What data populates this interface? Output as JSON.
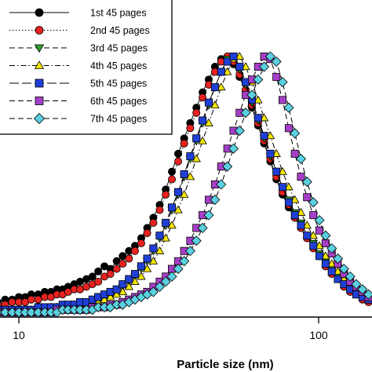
{
  "chart_data": {
    "type": "scatter",
    "title": "",
    "xlabel": "Particle size (nm)",
    "ylabel": "",
    "xscale": "log",
    "xlim": [
      8.3,
      150
    ],
    "ylim": [
      0,
      1.04
    ],
    "xticks": [
      10,
      100
    ],
    "xtick_labels": [
      "10",
      "100"
    ],
    "grid": false,
    "legend_position": "top-left",
    "series": [
      {
        "name": "1st 45 pages",
        "color": "#000000",
        "marker": "circle",
        "line": "solid",
        "x": [
          8.5,
          9.0,
          9.5,
          10.0,
          10.5,
          11.0,
          11.6,
          12.2,
          12.8,
          13.4,
          14.0,
          14.6,
          15.3,
          16.0,
          16.8,
          17.6,
          18.4,
          19.3,
          20.2,
          21.2,
          22.2,
          23.3,
          24.4,
          25.6,
          26.8,
          28.1,
          29.5,
          30.9,
          32.4,
          34.0,
          35.6,
          37.3,
          39.1,
          41.0,
          43.0,
          45.1,
          47.3,
          49.6,
          52.0,
          54.5,
          57.1,
          59.9,
          62.8,
          65.8,
          69.0,
          72.3,
          75.8,
          79.5,
          83.3,
          87.3,
          91.5,
          96.0,
          100.6,
          105.5,
          110.6,
          115.9,
          121.5,
          127.4,
          133.5,
          140.0,
          146.7
        ],
        "y": [
          0.04,
          0.05,
          0.05,
          0.06,
          0.06,
          0.07,
          0.07,
          0.08,
          0.08,
          0.09,
          0.09,
          0.1,
          0.11,
          0.12,
          0.13,
          0.14,
          0.16,
          0.18,
          0.17,
          0.2,
          0.22,
          0.24,
          0.26,
          0.29,
          0.33,
          0.37,
          0.42,
          0.48,
          0.55,
          0.62,
          0.68,
          0.74,
          0.8,
          0.86,
          0.91,
          0.96,
          0.99,
          1.0,
          0.97,
          0.92,
          0.86,
          0.8,
          0.73,
          0.66,
          0.59,
          0.52,
          0.46,
          0.41,
          0.37,
          0.33,
          0.29,
          0.26,
          0.22,
          0.19,
          0.16,
          0.13,
          0.11,
          0.09,
          0.07,
          0.06,
          0.05
        ]
      },
      {
        "name": "2nd 45 pages",
        "color": "#e8221f",
        "marker": "circle",
        "line": "dotted",
        "x": [
          8.5,
          9.0,
          9.5,
          10.0,
          10.5,
          11.0,
          11.6,
          12.2,
          12.8,
          13.4,
          14.0,
          14.6,
          15.3,
          16.0,
          16.8,
          17.6,
          18.4,
          19.3,
          20.2,
          21.2,
          22.2,
          23.3,
          24.4,
          25.6,
          26.8,
          28.1,
          29.5,
          30.9,
          32.4,
          34.0,
          35.6,
          37.3,
          39.1,
          41.0,
          43.0,
          45.1,
          47.3,
          49.6,
          52.0,
          54.5,
          57.1,
          59.9,
          62.8,
          65.8,
          69.0,
          72.3,
          75.8,
          79.5,
          83.3,
          87.3,
          91.5,
          96.0,
          100.6,
          105.5,
          110.6,
          115.9,
          121.5,
          127.4,
          133.5,
          140.0,
          146.7
        ],
        "y": [
          0.03,
          0.03,
          0.04,
          0.04,
          0.04,
          0.05,
          0.05,
          0.06,
          0.06,
          0.07,
          0.07,
          0.08,
          0.09,
          0.09,
          0.1,
          0.11,
          0.12,
          0.14,
          0.15,
          0.17,
          0.19,
          0.21,
          0.24,
          0.27,
          0.31,
          0.35,
          0.4,
          0.46,
          0.52,
          0.59,
          0.66,
          0.72,
          0.78,
          0.84,
          0.89,
          0.94,
          0.98,
          1.0,
          0.98,
          0.93,
          0.87,
          0.81,
          0.74,
          0.67,
          0.6,
          0.53,
          0.47,
          0.42,
          0.37,
          0.33,
          0.29,
          0.25,
          0.22,
          0.18,
          0.15,
          0.13,
          0.1,
          0.08,
          0.07,
          0.05,
          0.04
        ]
      },
      {
        "name": "3rd 45 pages",
        "color": "#2f9e2f",
        "marker": "triangle-down",
        "line": "dashed",
        "x": [
          8.5,
          9.0,
          9.5,
          10.0,
          10.5,
          11.0,
          11.6,
          12.2,
          12.8,
          13.4,
          14.0,
          14.6,
          15.3,
          16.0,
          16.8,
          17.6,
          18.4,
          19.3,
          20.2,
          21.2,
          22.2,
          23.3,
          24.4,
          25.6,
          26.8,
          28.1,
          29.5,
          30.9,
          32.4,
          34.0,
          35.6,
          37.3,
          39.1,
          41.0,
          43.0,
          45.1,
          47.3,
          49.6,
          52.0,
          54.5,
          57.1,
          59.9,
          62.8,
          65.8,
          69.0,
          72.3,
          75.8,
          79.5,
          83.3,
          87.3,
          91.5,
          96.0,
          100.6,
          105.5,
          110.6,
          115.9,
          121.5,
          127.4,
          133.5,
          140.0,
          146.7
        ],
        "y": [
          0.01,
          0.01,
          0.01,
          0.01,
          0.01,
          0.01,
          0.01,
          0.02,
          0.02,
          0.02,
          0.02,
          0.03,
          0.03,
          0.03,
          0.04,
          0.04,
          0.05,
          0.06,
          0.07,
          0.08,
          0.1,
          0.12,
          0.14,
          0.17,
          0.2,
          0.24,
          0.29,
          0.34,
          0.4,
          0.46,
          0.53,
          0.6,
          0.67,
          0.74,
          0.81,
          0.88,
          0.94,
          0.99,
          1.0,
          0.95,
          0.89,
          0.82,
          0.75,
          0.68,
          0.61,
          0.55,
          0.49,
          0.44,
          0.39,
          0.35,
          0.3,
          0.27,
          0.23,
          0.2,
          0.17,
          0.14,
          0.12,
          0.09,
          0.08,
          0.06,
          0.05
        ]
      },
      {
        "name": "4th 45 pages",
        "color": "#f2e600",
        "marker": "triangle-up",
        "line": "dashdot",
        "x": [
          8.5,
          9.0,
          9.5,
          10.0,
          10.5,
          11.0,
          11.6,
          12.2,
          12.8,
          13.4,
          14.0,
          14.6,
          15.3,
          16.0,
          16.8,
          17.6,
          18.4,
          19.3,
          20.2,
          21.2,
          22.2,
          23.3,
          24.4,
          25.6,
          26.8,
          28.1,
          29.5,
          30.9,
          32.4,
          34.0,
          35.6,
          37.3,
          39.1,
          41.0,
          43.0,
          45.1,
          47.3,
          49.6,
          52.0,
          54.5,
          57.1,
          59.9,
          62.8,
          65.8,
          69.0,
          72.3,
          75.8,
          79.5,
          83.3,
          87.3,
          91.5,
          96.0,
          100.6,
          105.5,
          110.6,
          115.9,
          121.5,
          127.4,
          133.5,
          140.0,
          146.7
        ],
        "y": [
          0.01,
          0.01,
          0.01,
          0.01,
          0.01,
          0.01,
          0.01,
          0.01,
          0.02,
          0.02,
          0.02,
          0.02,
          0.03,
          0.03,
          0.03,
          0.04,
          0.04,
          0.05,
          0.06,
          0.07,
          0.08,
          0.1,
          0.12,
          0.14,
          0.17,
          0.2,
          0.24,
          0.29,
          0.34,
          0.4,
          0.46,
          0.53,
          0.6,
          0.67,
          0.74,
          0.81,
          0.88,
          0.94,
          0.99,
          1.0,
          0.96,
          0.9,
          0.83,
          0.76,
          0.69,
          0.62,
          0.55,
          0.49,
          0.44,
          0.39,
          0.34,
          0.3,
          0.26,
          0.22,
          0.19,
          0.16,
          0.13,
          0.11,
          0.09,
          0.07,
          0.06
        ]
      },
      {
        "name": "5th 45 pages",
        "color": "#1f3fd6",
        "marker": "square",
        "line": "longdash",
        "x": [
          8.5,
          9.0,
          9.5,
          10.0,
          10.5,
          11.0,
          11.6,
          12.2,
          12.8,
          13.4,
          14.0,
          14.6,
          15.3,
          16.0,
          16.8,
          17.6,
          18.4,
          19.3,
          20.2,
          21.2,
          22.2,
          23.3,
          24.4,
          25.6,
          26.8,
          28.1,
          29.5,
          30.9,
          32.4,
          34.0,
          35.6,
          37.3,
          39.1,
          41.0,
          43.0,
          45.1,
          47.3,
          49.6,
          52.0,
          54.5,
          57.1,
          59.9,
          62.8,
          65.8,
          69.0,
          72.3,
          75.8,
          79.5,
          83.3,
          87.3,
          91.5,
          96.0,
          100.6,
          105.5,
          110.6,
          115.9,
          121.5,
          127.4,
          133.5,
          140.0,
          146.7
        ],
        "y": [
          0.01,
          0.01,
          0.01,
          0.01,
          0.01,
          0.01,
          0.02,
          0.02,
          0.02,
          0.02,
          0.03,
          0.03,
          0.03,
          0.04,
          0.04,
          0.05,
          0.06,
          0.07,
          0.08,
          0.09,
          0.11,
          0.13,
          0.15,
          0.18,
          0.21,
          0.25,
          0.3,
          0.35,
          0.41,
          0.47,
          0.54,
          0.61,
          0.68,
          0.75,
          0.82,
          0.88,
          0.94,
          0.98,
          1.0,
          0.96,
          0.9,
          0.83,
          0.76,
          0.69,
          0.62,
          0.55,
          0.49,
          0.43,
          0.38,
          0.34,
          0.3,
          0.26,
          0.22,
          0.19,
          0.16,
          0.13,
          0.11,
          0.09,
          0.07,
          0.06,
          0.05
        ]
      },
      {
        "name": "6th 45 pages",
        "color": "#a63fc8",
        "marker": "square",
        "line": "dashed",
        "x": [
          8.5,
          9.0,
          9.5,
          10.0,
          10.5,
          11.0,
          11.6,
          12.2,
          12.8,
          13.4,
          14.0,
          14.6,
          15.3,
          16.0,
          16.8,
          17.6,
          18.4,
          19.3,
          20.2,
          21.2,
          22.2,
          23.3,
          24.4,
          25.6,
          26.8,
          28.1,
          29.5,
          30.9,
          32.4,
          34.0,
          35.6,
          37.3,
          39.1,
          41.0,
          43.0,
          45.1,
          47.3,
          49.6,
          52.0,
          54.5,
          57.1,
          59.9,
          62.8,
          65.8,
          69.0,
          72.3,
          75.8,
          79.5,
          83.3,
          87.3,
          91.5,
          96.0,
          100.6,
          105.5,
          110.6,
          115.9,
          121.5,
          127.4,
          133.5,
          140.0,
          146.7
        ],
        "y": [
          0.0,
          0.0,
          0.0,
          0.0,
          0.0,
          0.0,
          0.0,
          0.0,
          0.0,
          0.01,
          0.01,
          0.01,
          0.01,
          0.01,
          0.01,
          0.02,
          0.02,
          0.02,
          0.03,
          0.03,
          0.04,
          0.05,
          0.06,
          0.07,
          0.08,
          0.1,
          0.12,
          0.14,
          0.17,
          0.2,
          0.24,
          0.28,
          0.33,
          0.38,
          0.44,
          0.5,
          0.57,
          0.64,
          0.71,
          0.78,
          0.85,
          0.91,
          0.96,
          1.0,
          0.99,
          0.92,
          0.83,
          0.72,
          0.62,
          0.53,
          0.45,
          0.38,
          0.32,
          0.27,
          0.23,
          0.19,
          0.15,
          0.12,
          0.1,
          0.08,
          0.06
        ]
      },
      {
        "name": "7th 45 pages",
        "color": "#5ad0e0",
        "marker": "diamond",
        "line": "dashed",
        "x": [
          8.5,
          9.0,
          9.5,
          10.0,
          10.5,
          11.0,
          11.6,
          12.2,
          12.8,
          13.4,
          14.0,
          14.6,
          15.3,
          16.0,
          16.8,
          17.6,
          18.4,
          19.3,
          20.2,
          21.2,
          22.2,
          23.3,
          24.4,
          25.6,
          26.8,
          28.1,
          29.5,
          30.9,
          32.4,
          34.0,
          35.6,
          37.3,
          39.1,
          41.0,
          43.0,
          45.1,
          47.3,
          49.6,
          52.0,
          54.5,
          57.1,
          59.9,
          62.8,
          65.8,
          69.0,
          72.3,
          75.8,
          79.5,
          83.3,
          87.3,
          91.5,
          96.0,
          100.6,
          105.5,
          110.6,
          115.9,
          121.5,
          127.4,
          133.5,
          140.0,
          146.7
        ],
        "y": [
          0.0,
          0.0,
          0.0,
          0.0,
          0.0,
          0.0,
          0.0,
          0.0,
          0.0,
          0.0,
          0.01,
          0.01,
          0.01,
          0.01,
          0.01,
          0.01,
          0.02,
          0.02,
          0.02,
          0.03,
          0.03,
          0.04,
          0.05,
          0.06,
          0.07,
          0.08,
          0.1,
          0.12,
          0.14,
          0.17,
          0.2,
          0.24,
          0.28,
          0.33,
          0.38,
          0.44,
          0.5,
          0.57,
          0.64,
          0.71,
          0.78,
          0.85,
          0.91,
          0.96,
          1.0,
          0.98,
          0.9,
          0.8,
          0.7,
          0.6,
          0.51,
          0.43,
          0.36,
          0.3,
          0.25,
          0.21,
          0.17,
          0.14,
          0.11,
          0.09,
          0.07
        ]
      }
    ]
  }
}
